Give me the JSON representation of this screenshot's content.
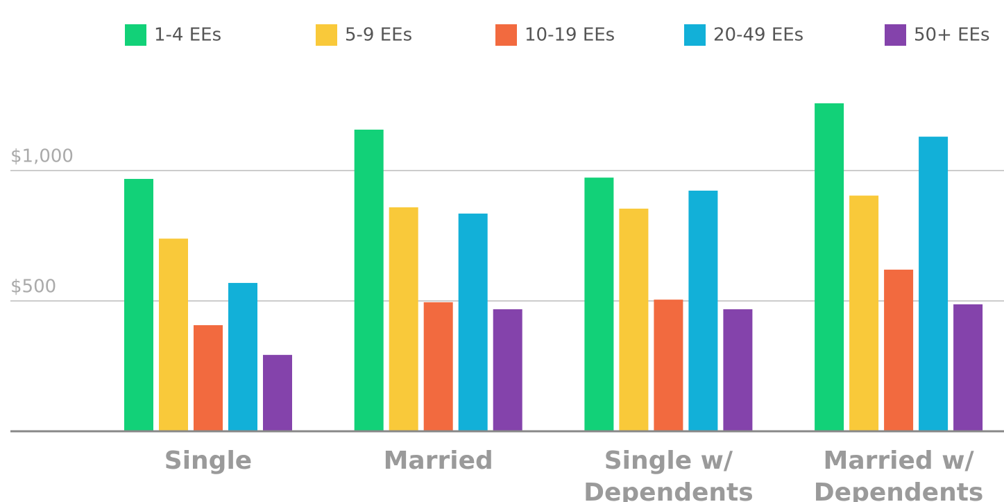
{
  "chart_data": {
    "type": "bar",
    "categories": [
      "Single",
      "Married",
      "Single w/ Dependents",
      "Married w/ Dependents"
    ],
    "series": [
      {
        "name": "1-4 EEs",
        "color": "#12d178",
        "values": [
          968,
          1157,
          973,
          1258
        ]
      },
      {
        "name": "5-9 EEs",
        "color": "#f9c93a",
        "values": [
          739,
          859,
          854,
          904
        ]
      },
      {
        "name": "10-19 EEs",
        "color": "#f26a3f",
        "values": [
          407,
          495,
          505,
          620
        ]
      },
      {
        "name": "20-49 EEs",
        "color": "#12b0d8",
        "values": [
          569,
          835,
          923,
          1130
        ]
      },
      {
        "name": "50+ EEs",
        "color": "#8443ab",
        "values": [
          293,
          468,
          468,
          487
        ]
      }
    ],
    "ylim": [
      0,
      1400
    ],
    "yticks": [
      {
        "value": 500,
        "label": "$500"
      },
      {
        "value": 1000,
        "label": "$1,000"
      }
    ],
    "grid": true,
    "legend": "top"
  }
}
